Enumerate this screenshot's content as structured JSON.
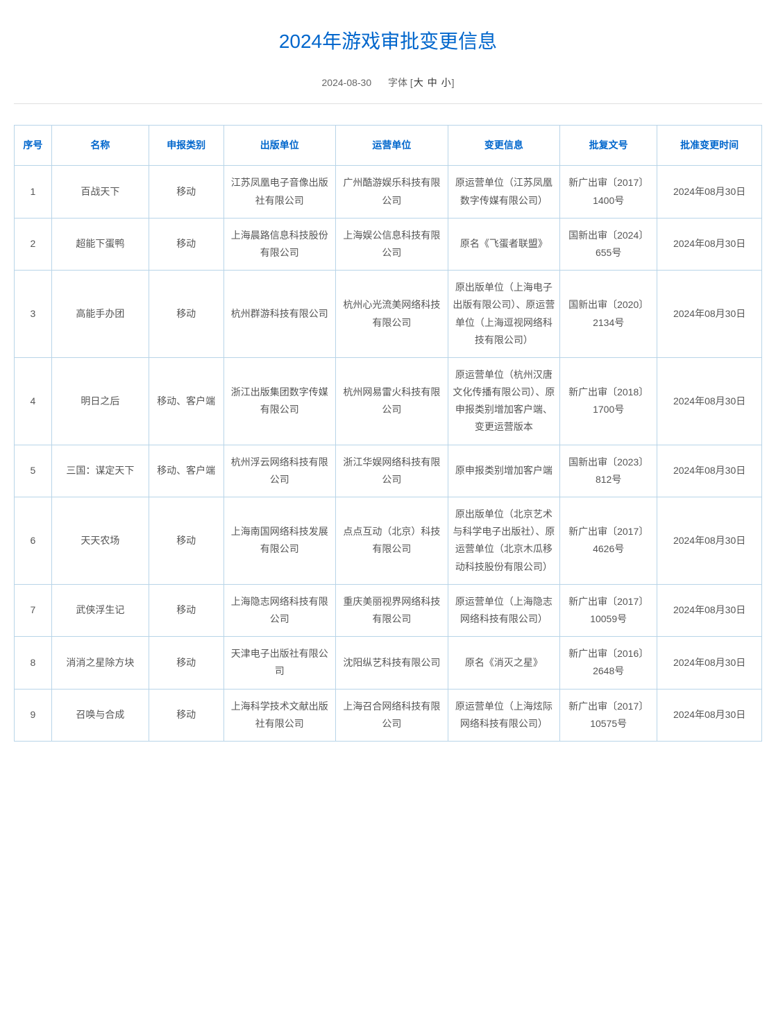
{
  "page": {
    "title": "2024年游戏审批变更信息",
    "date": "2024-08-30",
    "font_label": "字体",
    "font_large": "大",
    "font_medium": "中",
    "font_small": "小"
  },
  "table": {
    "columns": [
      "序号",
      "名称",
      "申报类别",
      "出版单位",
      "运营单位",
      "变更信息",
      "批复文号",
      "批准变更时间"
    ],
    "rows": [
      {
        "seq": "1",
        "name": "百战天下",
        "type": "移动",
        "publisher": "江苏凤凰电子音像出版社有限公司",
        "operator": "广州酷游娱乐科技有限公司",
        "change": "原运营单位（江苏凤凰数字传媒有限公司）",
        "doc": "新广出审〔2017〕1400号",
        "date": "2024年08月30日"
      },
      {
        "seq": "2",
        "name": "超能下蛋鸭",
        "type": "移动",
        "publisher": "上海晨路信息科技股份有限公司",
        "operator": "上海娱公信息科技有限公司",
        "change": "原名《飞蛋者联盟》",
        "doc": "国新出审〔2024〕655号",
        "date": "2024年08月30日"
      },
      {
        "seq": "3",
        "name": "高能手办团",
        "type": "移动",
        "publisher": "杭州群游科技有限公司",
        "operator": "杭州心光流美网络科技有限公司",
        "change": "原出版单位（上海电子出版有限公司）、原运营单位（上海逗视网络科技有限公司）",
        "doc": "国新出审〔2020〕2134号",
        "date": "2024年08月30日"
      },
      {
        "seq": "4",
        "name": "明日之后",
        "type": "移动、客户端",
        "publisher": "浙江出版集团数字传媒有限公司",
        "operator": "杭州网易雷火科技有限公司",
        "change": "原运营单位（杭州汉唐文化传播有限公司）、原申报类别增加客户端、变更运营版本",
        "doc": "新广出审〔2018〕1700号",
        "date": "2024年08月30日"
      },
      {
        "seq": "5",
        "name": "三国：谋定天下",
        "type": "移动、客户端",
        "publisher": "杭州浮云网络科技有限公司",
        "operator": "浙江华娱网络科技有限公司",
        "change": "原申报类别增加客户端",
        "doc": "国新出审〔2023〕812号",
        "date": "2024年08月30日"
      },
      {
        "seq": "6",
        "name": "天天农场",
        "type": "移动",
        "publisher": "上海南国网络科技发展有限公司",
        "operator": "点点互动（北京）科技有限公司",
        "change": "原出版单位（北京艺术与科学电子出版社）、原运营单位（北京木瓜移动科技股份有限公司）",
        "doc": "新广出审〔2017〕4626号",
        "date": "2024年08月30日"
      },
      {
        "seq": "7",
        "name": "武侠浮生记",
        "type": "移动",
        "publisher": "上海隐志网络科技有限公司",
        "operator": "重庆美丽视界网络科技有限公司",
        "change": "原运营单位（上海隐志网络科技有限公司）",
        "doc": "新广出审〔2017〕10059号",
        "date": "2024年08月30日"
      },
      {
        "seq": "8",
        "name": "消消之星除方块",
        "type": "移动",
        "publisher": "天津电子出版社有限公司",
        "operator": "沈阳纵艺科技有限公司",
        "change": "原名《消灭之星》",
        "doc": "新广出审〔2016〕2648号",
        "date": "2024年08月30日"
      },
      {
        "seq": "9",
        "name": "召唤与合成",
        "type": "移动",
        "publisher": "上海科学技术文献出版社有限公司",
        "operator": "上海召合网络科技有限公司",
        "change": "原运营单位（上海炫际网络科技有限公司）",
        "doc": "新广出审〔2017〕10575号",
        "date": "2024年08月30日"
      }
    ]
  },
  "colors": {
    "title": "#0066cc",
    "header_text": "#0066cc",
    "border": "#b8d4e8",
    "body_text": "#555",
    "meta_text": "#666"
  }
}
